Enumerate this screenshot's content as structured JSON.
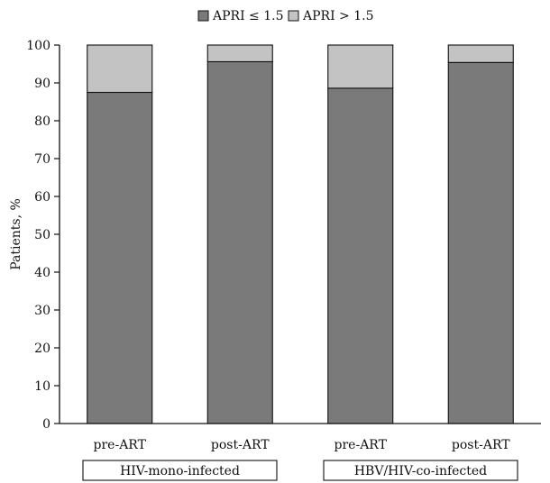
{
  "chart_data": {
    "type": "bar",
    "stacked": true,
    "categories": [
      "pre-ART",
      "post-ART",
      "pre-ART",
      "post-ART"
    ],
    "groups": [
      {
        "label": "HIV-mono-infected",
        "categories": [
          0,
          1
        ]
      },
      {
        "label": "HBV/HIV-co-infected",
        "categories": [
          2,
          3
        ]
      }
    ],
    "series": [
      {
        "name": "APRI ≤ 1.5",
        "color": "#7a7a7a",
        "values": [
          87.5,
          95.6,
          88.6,
          95.4
        ]
      },
      {
        "name": "APRI > 1.5",
        "color": "#c3c3c3",
        "values": [
          12.5,
          4.4,
          11.4,
          4.6
        ]
      }
    ],
    "ylabel": "Patients, %",
    "ylim": [
      0,
      100
    ],
    "yticks": [
      "0",
      "10",
      "20",
      "30",
      "40",
      "50",
      "60",
      "70",
      "80",
      "90",
      "100"
    ],
    "legend_position": "top",
    "grid": false
  }
}
